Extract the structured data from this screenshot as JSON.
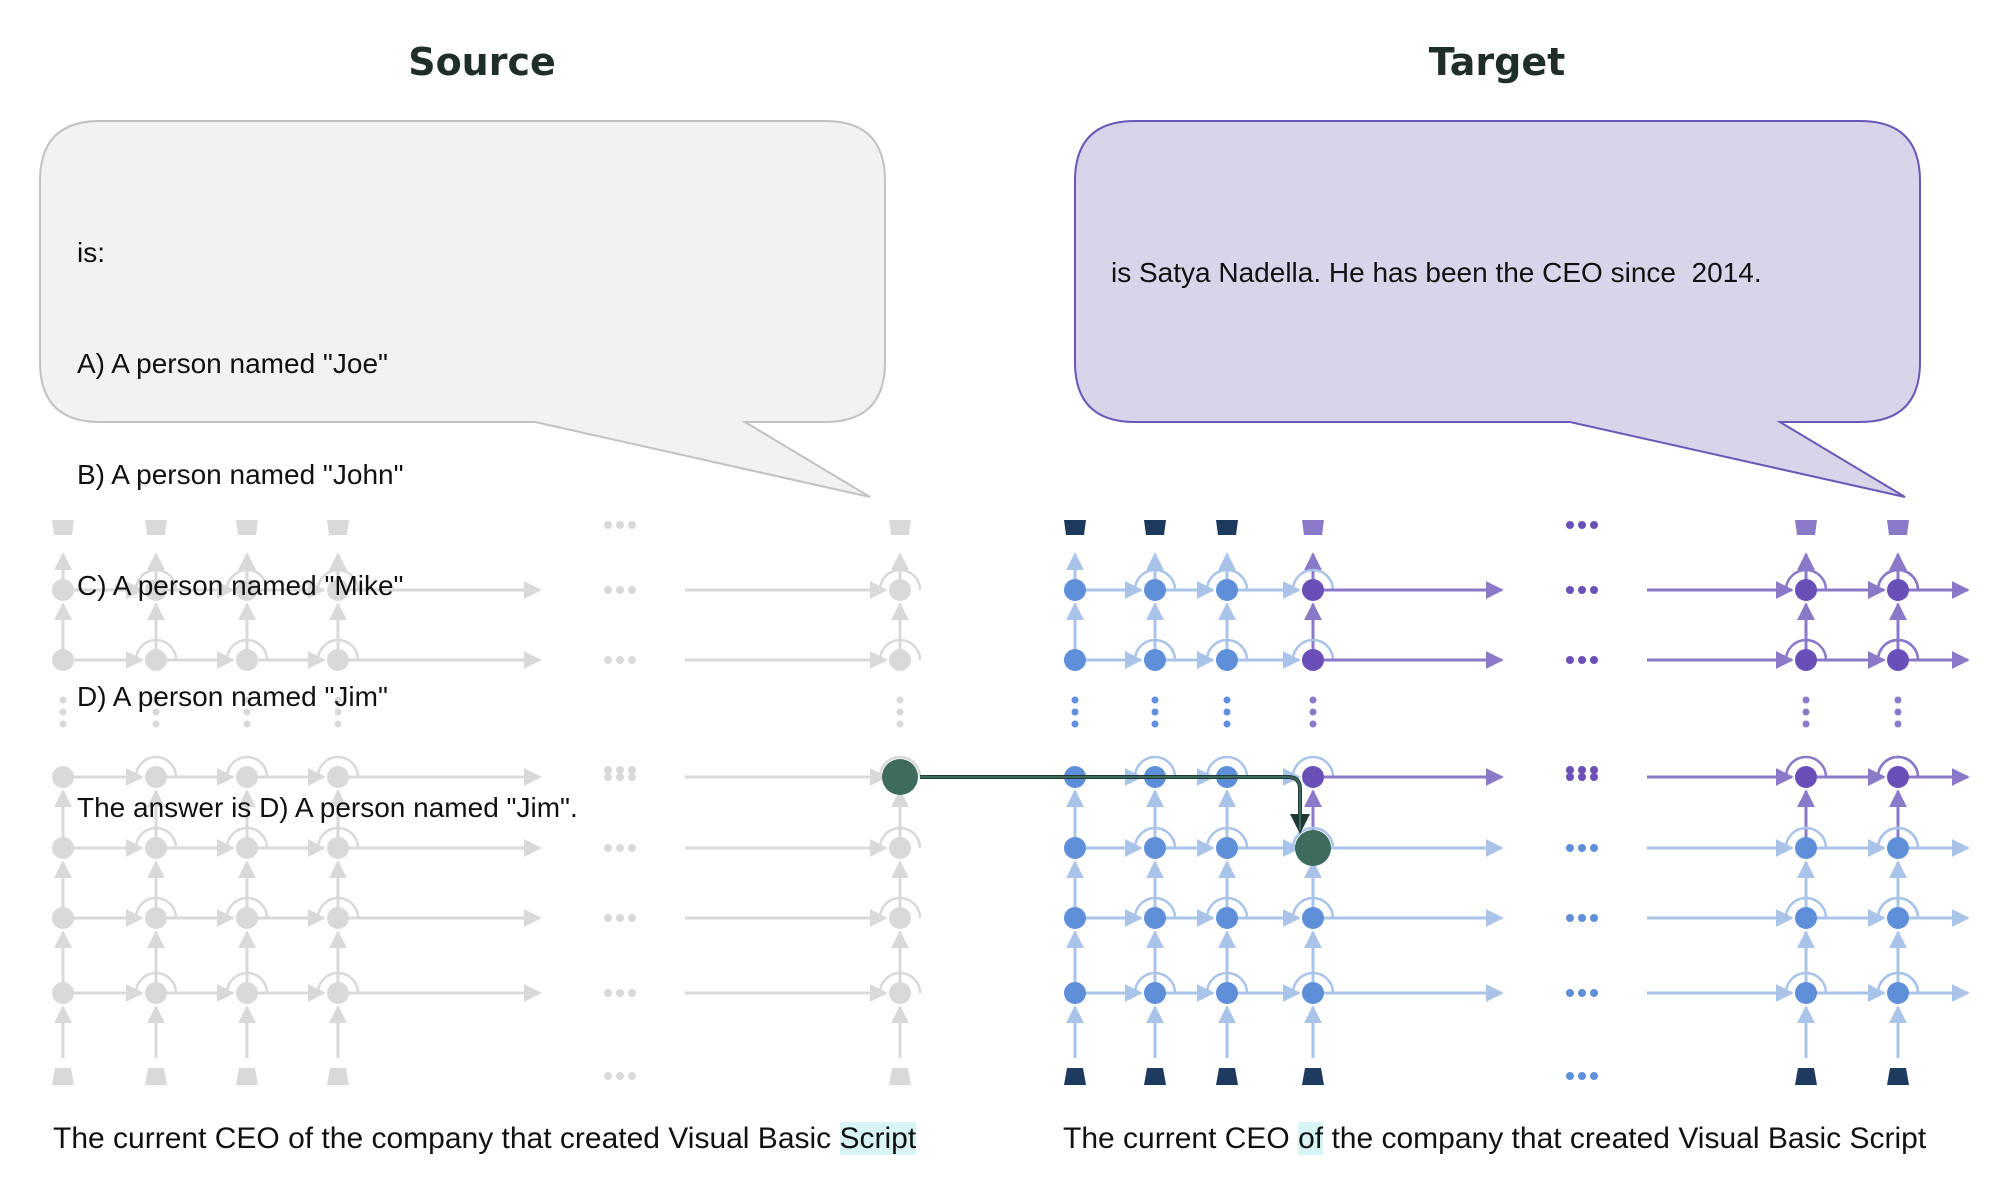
{
  "source": {
    "title": "Source",
    "bubble_lines": [
      "is:",
      "A) A person named \"Joe\"",
      "B) A person named \"John\"",
      "C) A person named \"Mike\"",
      "D) A person named \"Jim\"",
      "The answer is D) A person named \"Jim\"."
    ],
    "prompt_prefix": "The current CEO of the company that created Visual Basic ",
    "prompt_highlight": "Script",
    "prompt_suffix": ""
  },
  "target": {
    "title": "Target",
    "bubble_text": "is Satya Nadella. He has been the CEO since  2014.",
    "prompt_prefix": "The current CEO ",
    "prompt_highlight": "of",
    "prompt_suffix": " the company that created Visual Basic Script"
  },
  "colors": {
    "source_gray": "#d9d9d9",
    "target_blue": "#a9c4e8",
    "target_node_blue": "#5f8fd8",
    "target_purple": "#8a78c8",
    "target_node_purple": "#6a4fb8",
    "token_dark": "#1f3a5f",
    "patch_green": "#3d6b5e",
    "highlight_cyan": "#d9f4f5",
    "bubble_source_fill": "#f2f2f2",
    "bubble_target_fill": "#d9d4ea"
  }
}
